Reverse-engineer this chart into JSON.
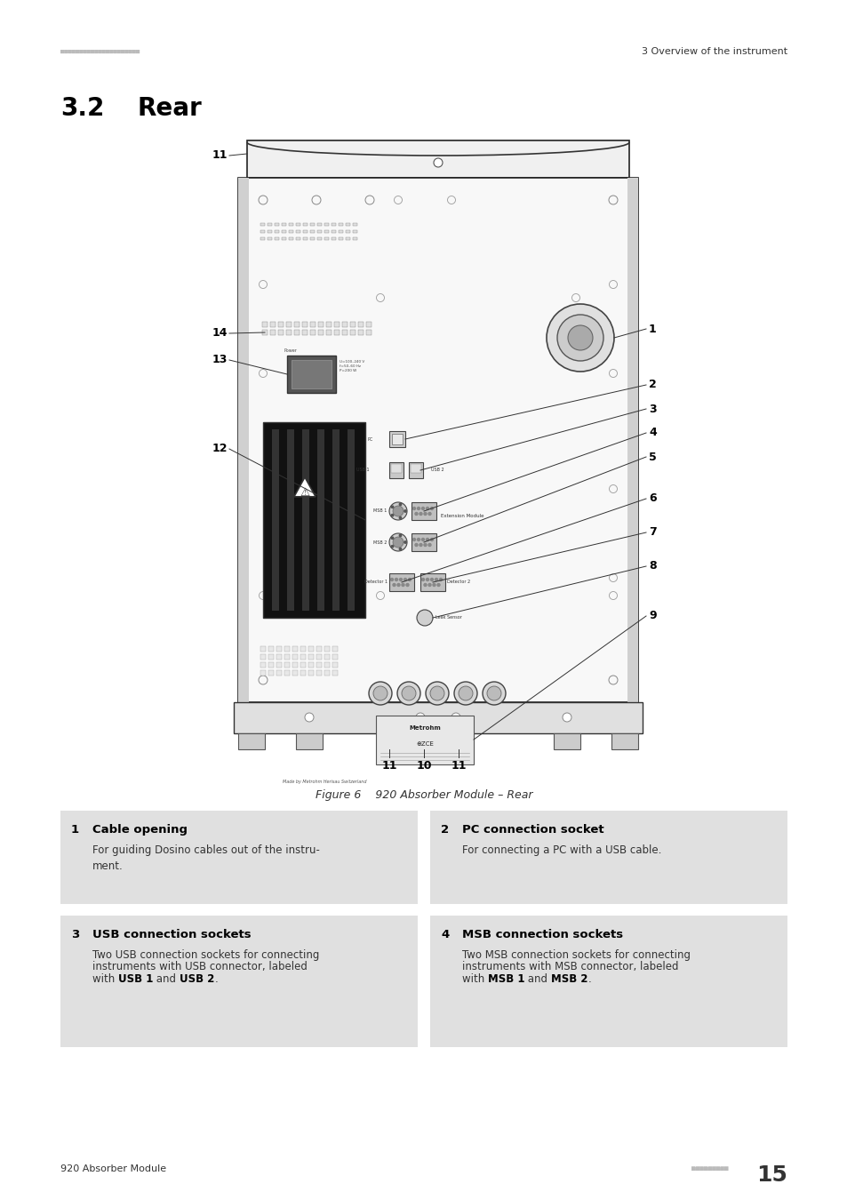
{
  "page_bg": "#ffffff",
  "header_dots": "■■■■■■■■■■■■■■■■■■■■■",
  "header_right_text": "3 Overview of the instrument",
  "section_number": "3.2",
  "section_title": "Rear",
  "figure_caption": "Figure 6    920 Absorber Module – Rear",
  "footer_left": "920 Absorber Module",
  "footer_page": "15",
  "box_bg": "#e0e0e0",
  "boxes": [
    {
      "num": "1",
      "title": "Cable opening",
      "text": "For guiding Dosino cables out of the instru-\nment.",
      "text_parts": null,
      "col": 0,
      "row": 0
    },
    {
      "num": "2",
      "title": "PC connection socket",
      "text": "For connecting a PC with a USB cable.",
      "text_parts": null,
      "col": 1,
      "row": 0
    },
    {
      "num": "3",
      "title": "USB connection sockets",
      "text": null,
      "text_parts": [
        {
          "t": "Two USB connection sockets for connecting\ninstruments with USB connector, labeled\nwith ",
          "b": false
        },
        {
          "t": "USB 1",
          "b": true
        },
        {
          "t": " and ",
          "b": false
        },
        {
          "t": "USB 2",
          "b": true
        },
        {
          "t": ".",
          "b": false
        }
      ],
      "col": 0,
      "row": 1
    },
    {
      "num": "4",
      "title": "MSB connection sockets",
      "text": null,
      "text_parts": [
        {
          "t": "Two MSB connection sockets for connecting\ninstruments with MSB connector, labeled\nwith ",
          "b": false
        },
        {
          "t": "MSB 1",
          "b": true
        },
        {
          "t": " and ",
          "b": false
        },
        {
          "t": "MSB 2",
          "b": true
        },
        {
          "t": ".",
          "b": false
        }
      ],
      "col": 1,
      "row": 1
    }
  ]
}
